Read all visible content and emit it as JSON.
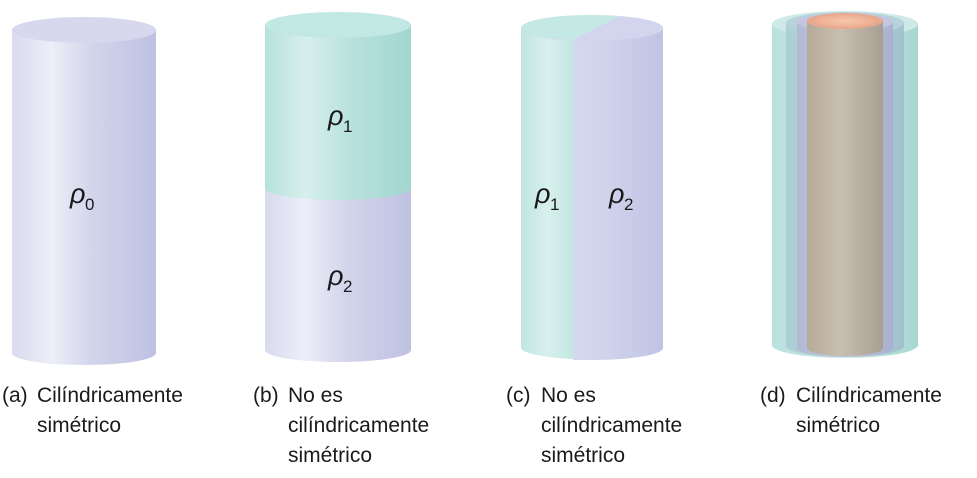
{
  "panels": [
    {
      "id": "a",
      "tag": "(a)",
      "caption_lines": [
        "Cilíndricamente",
        "simétrico"
      ],
      "labels": [
        {
          "symbol": "ρ",
          "sub": "0"
        }
      ]
    },
    {
      "id": "b",
      "tag": "(b)",
      "caption_lines": [
        "No es",
        "cilíndricamente",
        "simétrico"
      ],
      "labels": [
        {
          "symbol": "ρ",
          "sub": "1"
        },
        {
          "symbol": "ρ",
          "sub": "2"
        }
      ]
    },
    {
      "id": "c",
      "tag": "(c)",
      "caption_lines": [
        "No es",
        "cilíndricamente",
        "simétrico"
      ],
      "labels": [
        {
          "symbol": "ρ",
          "sub": "1"
        },
        {
          "symbol": "ρ",
          "sub": "2"
        }
      ]
    },
    {
      "id": "d",
      "tag": "(d)",
      "caption_lines": [
        "Cilíndricamente",
        "simétrico"
      ],
      "labels": []
    }
  ],
  "colors": {
    "lavender_side": "#cfd1ea",
    "lavender_top": "#d7d8ee",
    "teal_side": "#a9dcd6",
    "teal_top": "#c2e8e3",
    "core_top": "#f2b9a0",
    "core_side": "#b9b0a3"
  }
}
